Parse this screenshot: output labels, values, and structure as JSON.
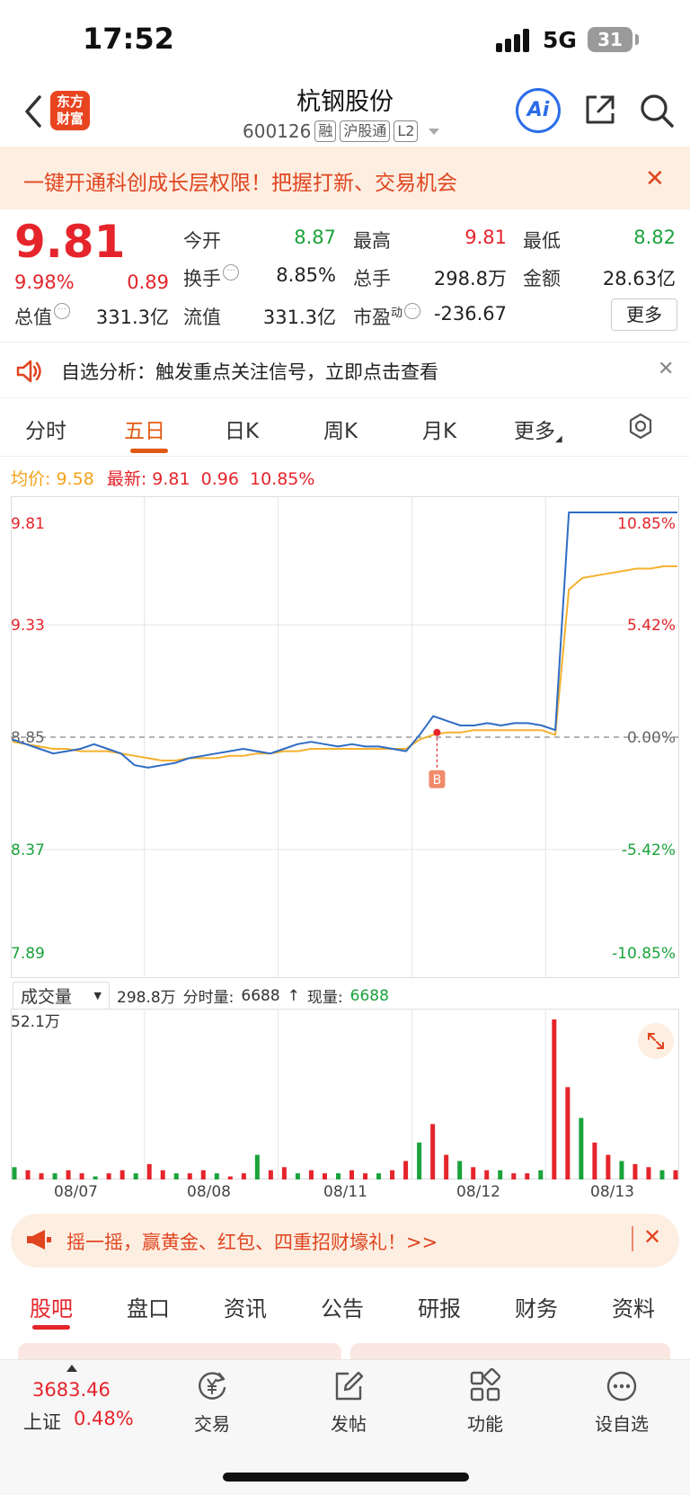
{
  "status": {
    "time": "17:52",
    "network": "5G",
    "battery": "31"
  },
  "header": {
    "logo_line1": "东方",
    "logo_line2": "财富",
    "name": "杭钢股份",
    "code": "600126",
    "tags": [
      "融",
      "沪股通",
      "L2"
    ],
    "ai_label": "Ai"
  },
  "promo": {
    "text": "一键开通科创成长层权限！把握打新、交易机会",
    "close": "✕"
  },
  "quote": {
    "price": "9.81",
    "change_pct": "9.98%",
    "change": "0.89",
    "fields": [
      {
        "label": "今开",
        "value": "8.87"
      },
      {
        "label": "最高",
        "value": "9.81"
      },
      {
        "label": "最低",
        "value": "8.82"
      },
      {
        "label": "换手",
        "value": "8.85%"
      },
      {
        "label": "总手",
        "value": "298.8万"
      },
      {
        "label": "金额",
        "value": "28.63亿"
      },
      {
        "label": "总值",
        "value": "331.3亿"
      },
      {
        "label": "流值",
        "value": "331.3亿"
      },
      {
        "label": "市盈",
        "sup": "动",
        "value": "-236.67"
      }
    ],
    "more_label": "更多"
  },
  "notice": {
    "text": "自选分析：触发重点关注信号，立即点击查看",
    "close": "✕"
  },
  "chart_tabs": [
    "分时",
    "五日",
    "日K",
    "周K",
    "月K",
    "更多"
  ],
  "active_tab": "五日",
  "avg_line": {
    "avg_label": "均价:",
    "avg_value": "9.58",
    "latest_label": "最新:",
    "latest_value": "9.81",
    "latest_change": "0.96",
    "latest_pct": "10.85%"
  },
  "volume": {
    "selector": "成交量",
    "total": "298.8万",
    "minute_label": "分时量:",
    "minute_value": "6688",
    "now_label": "现量:",
    "now_value": "6688",
    "arrow": "↑"
  },
  "chart_data": {
    "type": "line",
    "title": "",
    "xlabel": "",
    "ylabel": "",
    "ylim": [
      7.89,
      9.81
    ],
    "y_ticks_left": [
      "9.81",
      "9.33",
      "8.85",
      "8.37",
      "7.89"
    ],
    "y_ticks_right": [
      "10.85%",
      "5.42%",
      "0.00%",
      "-5.42%",
      "-10.85%"
    ],
    "prev_close": 8.85,
    "days": [
      "08/07",
      "08/08",
      "08/11",
      "08/12",
      "08/13"
    ],
    "series": [
      {
        "name": "最新",
        "color": "#2f6cc4",
        "values": [
          8.84,
          8.82,
          8.8,
          8.78,
          8.79,
          8.8,
          8.82,
          8.8,
          8.78,
          8.73,
          8.72,
          8.73,
          8.74,
          8.76,
          8.77,
          8.78,
          8.79,
          8.8,
          8.79,
          8.78,
          8.8,
          8.82,
          8.83,
          8.82,
          8.81,
          8.82,
          8.81,
          8.81,
          8.8,
          8.79,
          8.86,
          8.94,
          8.92,
          8.9,
          8.9,
          8.91,
          8.9,
          8.91,
          8.91,
          8.9,
          8.88,
          9.81,
          9.81,
          9.81,
          9.81,
          9.81,
          9.81,
          9.81,
          9.81,
          9.81
        ]
      },
      {
        "name": "均价",
        "color": "#f4b12e",
        "values": [
          8.83,
          8.82,
          8.81,
          8.8,
          8.8,
          8.79,
          8.79,
          8.79,
          8.78,
          8.77,
          8.76,
          8.75,
          8.75,
          8.76,
          8.76,
          8.76,
          8.77,
          8.77,
          8.78,
          8.78,
          8.79,
          8.79,
          8.8,
          8.8,
          8.8,
          8.8,
          8.8,
          8.8,
          8.8,
          8.8,
          8.84,
          8.86,
          8.87,
          8.87,
          8.88,
          8.88,
          8.88,
          8.88,
          8.88,
          8.88,
          8.86,
          9.48,
          9.53,
          9.54,
          9.55,
          9.56,
          9.57,
          9.57,
          9.58,
          9.58
        ]
      }
    ],
    "marker": {
      "label": "B",
      "day": "08/12"
    },
    "volume_max_label": "52.1万",
    "volume_values": [
      4,
      3,
      2,
      2,
      3,
      2,
      1,
      2,
      3,
      2,
      5,
      3,
      2,
      2,
      3,
      2,
      1,
      2,
      8,
      3,
      4,
      2,
      3,
      2,
      2,
      3,
      2,
      2,
      3,
      6,
      12,
      18,
      8,
      6,
      4,
      3,
      3,
      2,
      2,
      3,
      52,
      30,
      20,
      12,
      8,
      6,
      5,
      4,
      3,
      3
    ]
  },
  "lottery": {
    "text": "摇一摇，赢黄金、红包、四重招财壕礼！>>",
    "close": "✕"
  },
  "bottom_tabs": [
    "股吧",
    "盘口",
    "资讯",
    "公告",
    "研报",
    "财务",
    "资料"
  ],
  "active_bottom_tab": "股吧",
  "nav": {
    "index_value": "3683.46",
    "index_name": "上证",
    "index_pct": "0.48%",
    "items": [
      {
        "label": "交易",
        "icon": "yuan-refresh-icon"
      },
      {
        "label": "发帖",
        "icon": "edit-icon"
      },
      {
        "label": "功能",
        "icon": "grid-icon"
      },
      {
        "label": "设自选",
        "icon": "more-circle-icon"
      }
    ]
  },
  "colors": {
    "red": "#e5242b",
    "green": "#1aa33b",
    "orange": "#e25a12",
    "blue": "#2f6cc4",
    "avg": "#f4b12e"
  }
}
